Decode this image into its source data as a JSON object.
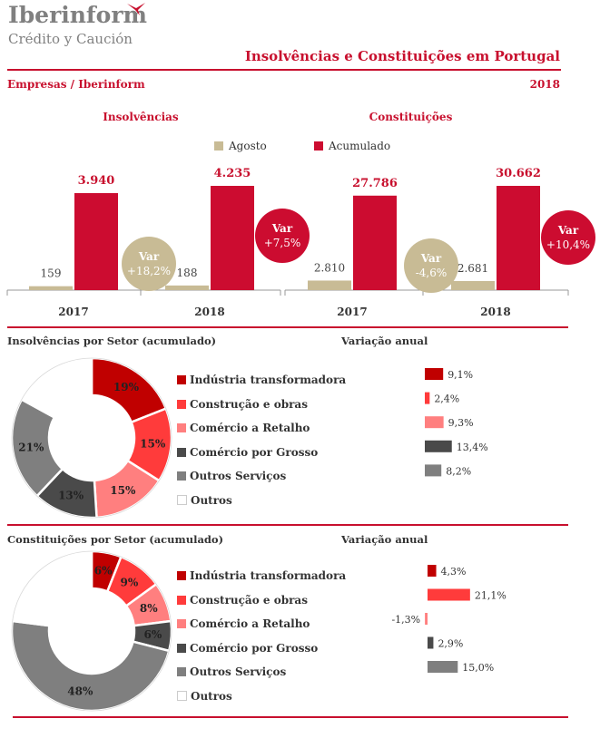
{
  "brand": {
    "name": "Iberinform",
    "tagline": "Crédito y Caución"
  },
  "header": {
    "title": "Insolvências e Constituições em Portugal",
    "subtitle": "Empresas / Iberinform",
    "year": "2018"
  },
  "colors": {
    "accent": "#c8102e",
    "agosto": "#c8bb95",
    "acumulado": "#cc0c30",
    "industria": "#c00000",
    "construcao": "#ff3b3b",
    "comercio_retalho": "#ff7f7f",
    "comercio_grosso": "#4a4a4a",
    "outros_servicos": "#7f7f7f",
    "outros": "#ffffff"
  },
  "legend_top": {
    "agosto": "Agosto",
    "acumulado": "Acumulado"
  },
  "chart_data": [
    {
      "type": "bar",
      "title": "Insolvências",
      "categories": [
        "2017",
        "2018"
      ],
      "series": [
        {
          "name": "Agosto",
          "values": [
            159,
            188
          ],
          "labels": [
            "159",
            "188"
          ]
        },
        {
          "name": "Acumulado",
          "values": [
            3940,
            4235
          ],
          "labels": [
            "3.940",
            "4.235"
          ]
        }
      ],
      "annotations": [
        {
          "label": "Var",
          "value": "+18,2%",
          "series": "Agosto"
        },
        {
          "label": "Var",
          "value": "+7,5%",
          "series": "Acumulado"
        }
      ]
    },
    {
      "type": "bar",
      "title": "Constituições",
      "categories": [
        "2017",
        "2018"
      ],
      "series": [
        {
          "name": "Agosto",
          "values": [
            2810,
            2681
          ],
          "labels": [
            "2.810",
            "2.681"
          ]
        },
        {
          "name": "Acumulado",
          "values": [
            27786,
            30662
          ],
          "labels": [
            "27.786",
            "30.662"
          ]
        }
      ],
      "annotations": [
        {
          "label": "Var",
          "value": "-4,6%",
          "series": "Agosto"
        },
        {
          "label": "Var",
          "value": "+10,4%",
          "series": "Acumulado"
        }
      ]
    },
    {
      "type": "pie",
      "title": "Insolvências por Setor (acumulado)",
      "categories": [
        "Indústria transformadora",
        "Construção e obras",
        "Comércio a Retalho",
        "Comércio por Grosso",
        "Outros Serviços",
        "Outros"
      ],
      "values": [
        19,
        15,
        15,
        13,
        21,
        17
      ],
      "labels": [
        "19%",
        "15%",
        "15%",
        "13%",
        "21%",
        ""
      ]
    },
    {
      "type": "bar",
      "title": "Variação anual",
      "categories": [
        "Indústria transformadora",
        "Construção e obras",
        "Comércio a Retalho",
        "Comércio por Grosso",
        "Outros Serviços"
      ],
      "values": [
        9.1,
        2.4,
        9.3,
        13.4,
        8.2
      ],
      "labels": [
        "9,1%",
        "2,4%",
        "9,3%",
        "13,4%",
        "8,2%"
      ]
    },
    {
      "type": "pie",
      "title": "Constituições por Setor (acumulado)",
      "categories": [
        "Indústria transformadora",
        "Construção e obras",
        "Comércio a Retalho",
        "Comércio por Grosso",
        "Outros Serviços",
        "Outros"
      ],
      "values": [
        6,
        9,
        8,
        6,
        48,
        23
      ],
      "labels": [
        "6%",
        "9%",
        "8%",
        "6%",
        "48%",
        ""
      ]
    },
    {
      "type": "bar",
      "title": "Variação anual",
      "categories": [
        "Indústria transformadora",
        "Construção e obras",
        "Comércio a Retalho",
        "Comércio por Grosso",
        "Outros Serviços"
      ],
      "values": [
        4.3,
        21.1,
        -1.3,
        2.9,
        15.0
      ],
      "labels": [
        "4,3%",
        "21,1%",
        "-1,3%",
        "2,9%",
        "15,0%"
      ]
    }
  ]
}
